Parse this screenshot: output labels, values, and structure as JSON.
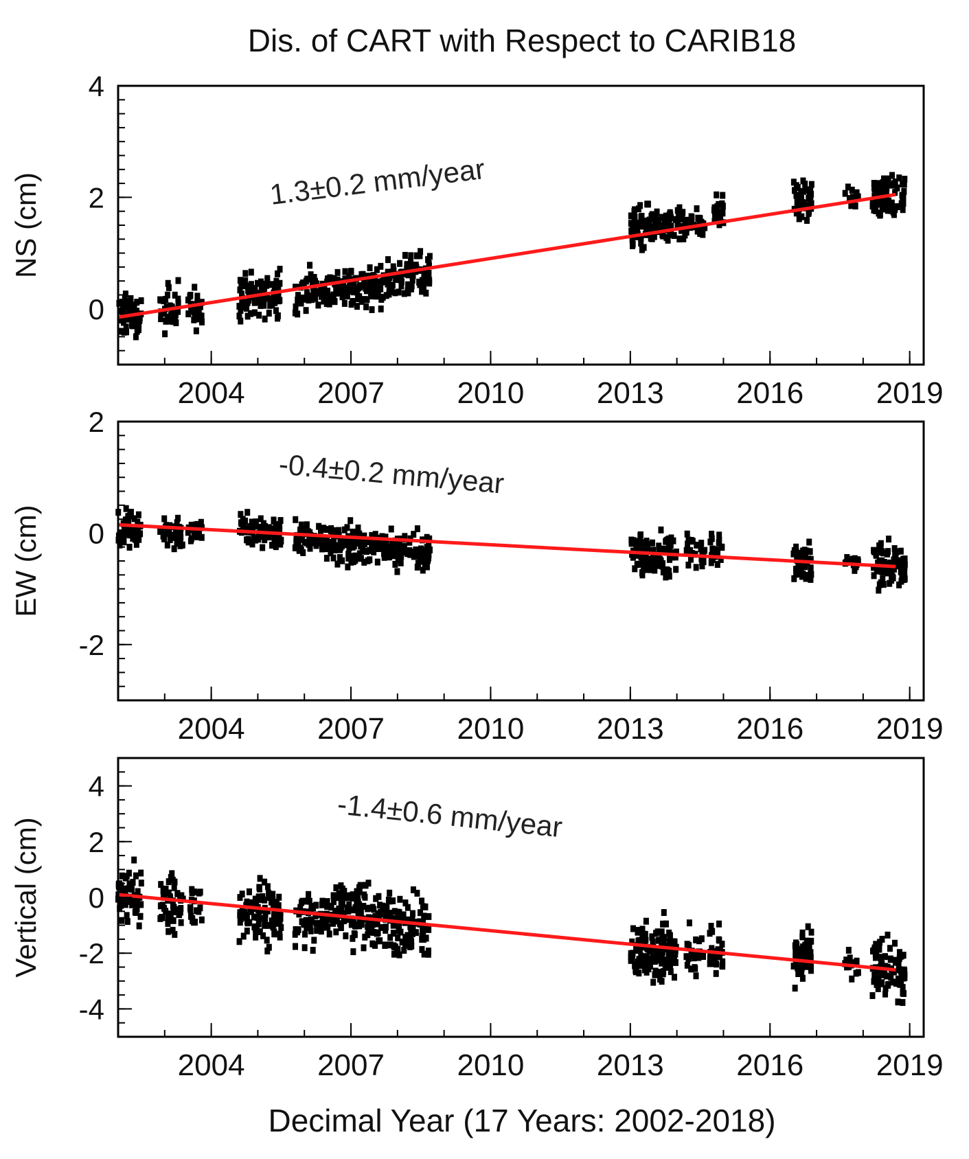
{
  "figure": {
    "title": "Dis. of CART with Respect to CARIB18",
    "xlabel": "Decimal Year (17 Years: 2002-2018)"
  },
  "chart_data": [
    {
      "type": "scatter",
      "name": "ns",
      "ylabel": "NS (cm)",
      "annotation": "1.3±0.2 mm/year",
      "xlim": [
        2002.0,
        2019.3
      ],
      "ylim": [
        -1.0,
        4.0
      ],
      "x_ticks": [
        2004,
        2007,
        2010,
        2013,
        2016,
        2019
      ],
      "x_tick_labels": [
        "2004",
        "2007",
        "2010",
        "2013",
        "2016",
        "2019"
      ],
      "y_ticks": [
        0,
        2,
        4
      ],
      "y_tick_labels": [
        "0",
        "2",
        "4"
      ],
      "trend": {
        "x": [
          2002.0,
          2018.7
        ],
        "y": [
          -0.15,
          2.05
        ],
        "color": "#ff1a1a"
      },
      "point_color": "#000000",
      "segments": [
        {
          "x_range": [
            2002.0,
            2002.5
          ],
          "y_center": [
            -0.15,
            -0.1
          ],
          "spread": 0.35,
          "n": 60
        },
        {
          "x_range": [
            2002.9,
            2003.3
          ],
          "y_center": [
            0.0,
            0.05
          ],
          "spread": 0.4,
          "n": 40
        },
        {
          "x_range": [
            2003.5,
            2003.8
          ],
          "y_center": [
            0.0,
            -0.05
          ],
          "spread": 0.35,
          "n": 30
        },
        {
          "x_range": [
            2004.6,
            2005.5
          ],
          "y_center": [
            0.2,
            0.3
          ],
          "spread": 0.4,
          "n": 90
        },
        {
          "x_range": [
            2005.8,
            2006.7
          ],
          "y_center": [
            0.3,
            0.35
          ],
          "spread": 0.35,
          "n": 80
        },
        {
          "x_range": [
            2006.7,
            2007.7
          ],
          "y_center": [
            0.35,
            0.45
          ],
          "spread": 0.35,
          "n": 100
        },
        {
          "x_range": [
            2007.7,
            2008.7
          ],
          "y_center": [
            0.5,
            0.65
          ],
          "spread": 0.35,
          "n": 100
        },
        {
          "x_range": [
            2013.0,
            2013.9
          ],
          "y_center": [
            1.4,
            1.5
          ],
          "spread": 0.35,
          "n": 100
        },
        {
          "x_range": [
            2013.9,
            2014.6
          ],
          "y_center": [
            1.5,
            1.6
          ],
          "spread": 0.3,
          "n": 50
        },
        {
          "x_range": [
            2014.8,
            2015.0
          ],
          "y_center": [
            1.7,
            1.75
          ],
          "spread": 0.3,
          "n": 25
        },
        {
          "x_range": [
            2016.5,
            2016.9
          ],
          "y_center": [
            1.9,
            1.95
          ],
          "spread": 0.3,
          "n": 45
        },
        {
          "x_range": [
            2017.6,
            2017.9
          ],
          "y_center": [
            1.95,
            2.0
          ],
          "spread": 0.2,
          "n": 15
        },
        {
          "x_range": [
            2018.2,
            2018.9
          ],
          "y_center": [
            2.0,
            2.05
          ],
          "spread": 0.35,
          "n": 80
        }
      ]
    },
    {
      "type": "scatter",
      "name": "ew",
      "ylabel": "EW (cm)",
      "annotation": "-0.4±0.2 mm/year",
      "xlim": [
        2002.0,
        2019.3
      ],
      "ylim": [
        -3.0,
        2.0
      ],
      "x_ticks": [
        2004,
        2007,
        2010,
        2013,
        2016,
        2019
      ],
      "x_tick_labels": [
        "2004",
        "2007",
        "2010",
        "2013",
        "2016",
        "2019"
      ],
      "y_ticks": [
        -2,
        0,
        2
      ],
      "y_tick_labels": [
        "-2",
        "0",
        "2"
      ],
      "trend": {
        "x": [
          2002.0,
          2018.7
        ],
        "y": [
          0.15,
          -0.6
        ],
        "color": "#ff1a1a"
      },
      "point_color": "#000000",
      "segments": [
        {
          "x_range": [
            2002.0,
            2002.5
          ],
          "y_center": [
            0.1,
            0.1
          ],
          "spread": 0.3,
          "n": 50
        },
        {
          "x_range": [
            2002.9,
            2003.4
          ],
          "y_center": [
            0.05,
            0.0
          ],
          "spread": 0.3,
          "n": 40
        },
        {
          "x_range": [
            2003.5,
            2003.8
          ],
          "y_center": [
            0.0,
            0.0
          ],
          "spread": 0.25,
          "n": 20
        },
        {
          "x_range": [
            2004.6,
            2005.5
          ],
          "y_center": [
            0.1,
            0.0
          ],
          "spread": 0.3,
          "n": 90
        },
        {
          "x_range": [
            2005.8,
            2006.7
          ],
          "y_center": [
            -0.1,
            -0.15
          ],
          "spread": 0.3,
          "n": 80
        },
        {
          "x_range": [
            2006.7,
            2007.7
          ],
          "y_center": [
            -0.2,
            -0.25
          ],
          "spread": 0.3,
          "n": 100
        },
        {
          "x_range": [
            2007.7,
            2008.7
          ],
          "y_center": [
            -0.3,
            -0.35
          ],
          "spread": 0.3,
          "n": 100
        },
        {
          "x_range": [
            2013.0,
            2014.0
          ],
          "y_center": [
            -0.3,
            -0.4
          ],
          "spread": 0.35,
          "n": 110
        },
        {
          "x_range": [
            2014.2,
            2014.6
          ],
          "y_center": [
            -0.3,
            -0.35
          ],
          "spread": 0.3,
          "n": 25
        },
        {
          "x_range": [
            2014.7,
            2015.0
          ],
          "y_center": [
            -0.3,
            -0.35
          ],
          "spread": 0.3,
          "n": 25
        },
        {
          "x_range": [
            2016.5,
            2016.9
          ],
          "y_center": [
            -0.55,
            -0.6
          ],
          "spread": 0.35,
          "n": 55
        },
        {
          "x_range": [
            2017.6,
            2017.9
          ],
          "y_center": [
            -0.55,
            -0.55
          ],
          "spread": 0.2,
          "n": 15
        },
        {
          "x_range": [
            2018.2,
            2018.9
          ],
          "y_center": [
            -0.55,
            -0.65
          ],
          "spread": 0.35,
          "n": 85
        }
      ]
    },
    {
      "type": "scatter",
      "name": "vertical",
      "ylabel": "Vertical (cm)",
      "annotation": "-1.4±0.6 mm/year",
      "xlim": [
        2002.0,
        2019.3
      ],
      "ylim": [
        -5.0,
        5.0
      ],
      "x_ticks": [
        2004,
        2007,
        2010,
        2013,
        2016,
        2019
      ],
      "x_tick_labels": [
        "2004",
        "2007",
        "2010",
        "2013",
        "2016",
        "2019"
      ],
      "y_ticks": [
        -4,
        -2,
        0,
        2,
        4
      ],
      "y_tick_labels": [
        "-4",
        "-2",
        "0",
        "2",
        "4"
      ],
      "trend": {
        "x": [
          2002.0,
          2018.7
        ],
        "y": [
          0.1,
          -2.6
        ],
        "color": "#ff1a1a"
      },
      "point_color": "#000000",
      "segments": [
        {
          "x_range": [
            2002.0,
            2002.5
          ],
          "y_center": [
            0.0,
            0.1
          ],
          "spread": 0.9,
          "n": 60
        },
        {
          "x_range": [
            2002.9,
            2003.4
          ],
          "y_center": [
            0.0,
            -0.3
          ],
          "spread": 1.0,
          "n": 50
        },
        {
          "x_range": [
            2003.5,
            2003.8
          ],
          "y_center": [
            -0.3,
            -0.5
          ],
          "spread": 0.8,
          "n": 20
        },
        {
          "x_range": [
            2004.6,
            2005.5
          ],
          "y_center": [
            -0.6,
            -0.5
          ],
          "spread": 1.1,
          "n": 100
        },
        {
          "x_range": [
            2005.8,
            2006.7
          ],
          "y_center": [
            -0.8,
            -0.8
          ],
          "spread": 1.0,
          "n": 80
        },
        {
          "x_range": [
            2006.7,
            2007.7
          ],
          "y_center": [
            -0.4,
            -0.7
          ],
          "spread": 1.1,
          "n": 120
        },
        {
          "x_range": [
            2007.7,
            2008.7
          ],
          "y_center": [
            -0.9,
            -1.2
          ],
          "spread": 1.0,
          "n": 110
        },
        {
          "x_range": [
            2013.0,
            2014.0
          ],
          "y_center": [
            -1.9,
            -2.0
          ],
          "spread": 1.0,
          "n": 140
        },
        {
          "x_range": [
            2014.2,
            2014.6
          ],
          "y_center": [
            -1.9,
            -2.0
          ],
          "spread": 0.9,
          "n": 25
        },
        {
          "x_range": [
            2014.7,
            2015.0
          ],
          "y_center": [
            -2.0,
            -2.0
          ],
          "spread": 1.0,
          "n": 30
        },
        {
          "x_range": [
            2016.5,
            2016.9
          ],
          "y_center": [
            -2.1,
            -2.2
          ],
          "spread": 1.0,
          "n": 60
        },
        {
          "x_range": [
            2017.6,
            2017.9
          ],
          "y_center": [
            -2.3,
            -2.4
          ],
          "spread": 0.6,
          "n": 18
        },
        {
          "x_range": [
            2018.2,
            2018.9
          ],
          "y_center": [
            -2.5,
            -2.7
          ],
          "spread": 1.0,
          "n": 90
        }
      ]
    }
  ]
}
